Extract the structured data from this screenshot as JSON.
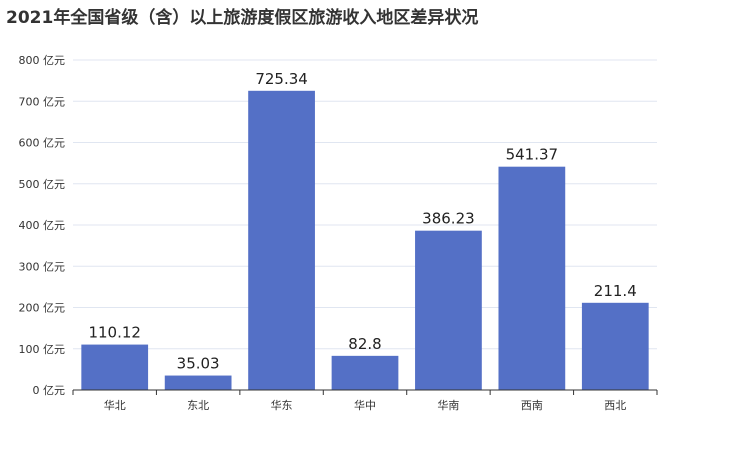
{
  "chart_data": {
    "type": "bar",
    "title": "2021年全国省级（含）以上旅游度假区旅游收入地区差异状况",
    "categories": [
      "华北",
      "东北",
      "华东",
      "华中",
      "华南",
      "西南",
      "西北"
    ],
    "values": [
      110.12,
      35.03,
      725.34,
      82.8,
      386.23,
      541.37,
      211.4
    ],
    "data_labels": [
      "110.12",
      "35.03",
      "725.34",
      "82.8",
      "386.23",
      "541.37",
      "211.4"
    ],
    "y_unit": "亿元",
    "y_ticks": [
      "0 亿元",
      "100 亿元",
      "200 亿元",
      "300 亿元",
      "400 亿元",
      "500 亿元",
      "600 亿元",
      "700 亿元",
      "800 亿元"
    ],
    "ylim": [
      0,
      800
    ],
    "y_step": 100,
    "grid": true,
    "legend": "none",
    "xlabel": "",
    "ylabel": "",
    "colors": {
      "bar": "#5470c6",
      "grid": "#e0e6f1",
      "axis": "#333333"
    }
  }
}
